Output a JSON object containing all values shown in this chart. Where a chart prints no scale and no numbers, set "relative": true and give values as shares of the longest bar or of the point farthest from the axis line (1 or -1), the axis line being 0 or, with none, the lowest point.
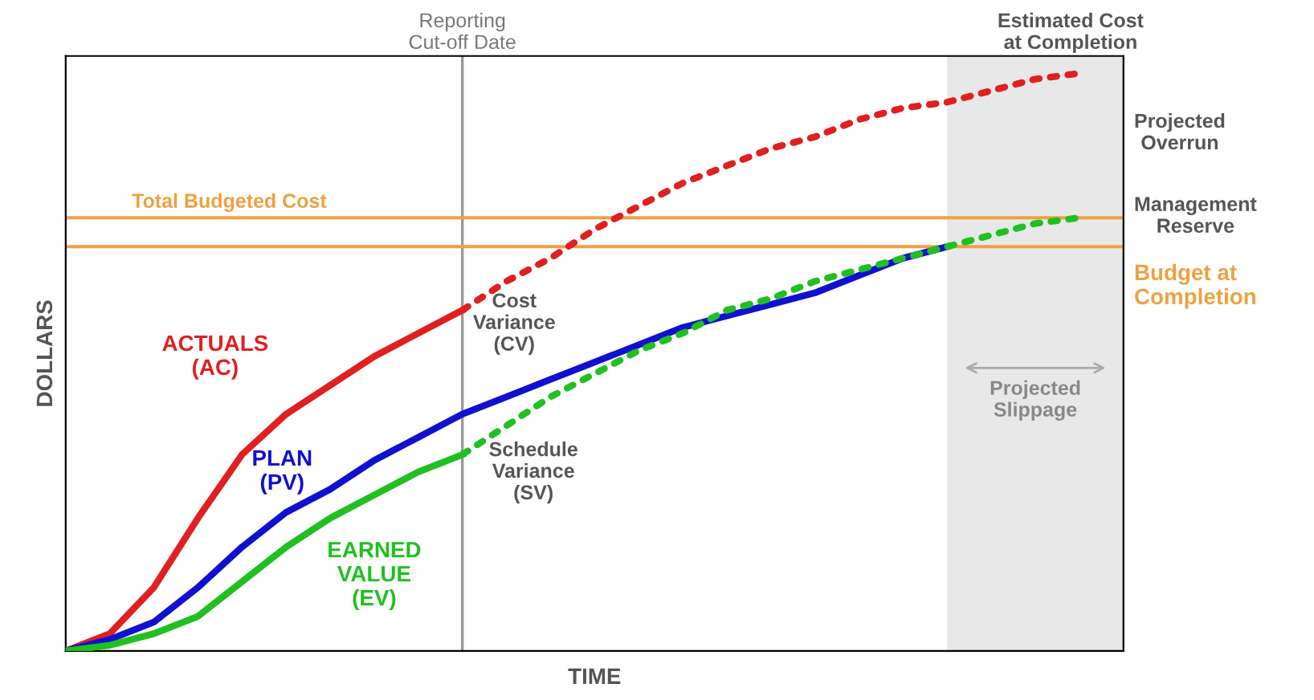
{
  "chart_data": {
    "type": "line",
    "relative": true,
    "xlabel": "TIME",
    "ylabel": "DOLLARS",
    "marker": "none",
    "categories": [
      null,
      null,
      null,
      null,
      null,
      null,
      null,
      null,
      null,
      null,
      null,
      null,
      null,
      null,
      null,
      null,
      null,
      null,
      null,
      null,
      null,
      null,
      null,
      null,
      null
    ],
    "series": [
      {
        "name": "ACTUALS\n(AC)",
        "color": "#e02020",
        "line_style": "solid",
        "values": [
          0,
          0.03,
          0.11,
          0.23,
          0.34,
          0.41,
          0.46,
          0.51,
          0.55,
          0.59,
          null,
          null,
          null,
          null,
          null,
          null,
          null,
          null,
          null,
          null,
          null,
          null,
          null,
          null,
          null
        ]
      },
      {
        "color": "#e02020",
        "line_style": "dotted",
        "values": [
          null,
          null,
          null,
          null,
          null,
          null,
          null,
          null,
          null,
          0.59,
          0.64,
          0.68,
          0.73,
          0.77,
          0.81,
          0.84,
          0.87,
          0.89,
          0.92,
          0.94,
          0.95,
          0.97,
          0.99,
          1.0,
          null
        ]
      },
      {
        "name": "PLAN\n(PV)",
        "color": "#1010d0",
        "line_style": "solid",
        "values": [
          0,
          0.02,
          0.05,
          0.11,
          0.18,
          0.24,
          0.28,
          0.33,
          0.37,
          0.41,
          0.44,
          0.47,
          0.5,
          0.53,
          0.56,
          0.58,
          0.6,
          0.62,
          0.65,
          0.68,
          0.7,
          null,
          null,
          null,
          null
        ]
      },
      {
        "name": "EARNED\nVALUE\n(EV)",
        "color": "#20c020",
        "line_style": "solid",
        "values": [
          0,
          0.01,
          0.03,
          0.06,
          0.12,
          0.18,
          0.23,
          0.27,
          0.31,
          0.34,
          null,
          null,
          null,
          null,
          null,
          null,
          null,
          null,
          null,
          null,
          null,
          null,
          null,
          null,
          null
        ]
      },
      {
        "color": "#20c020",
        "line_style": "dotted",
        "values": [
          null,
          null,
          null,
          null,
          null,
          null,
          null,
          null,
          null,
          0.34,
          0.39,
          0.44,
          0.48,
          0.52,
          0.55,
          0.59,
          0.61,
          0.64,
          0.66,
          0.68,
          0.7,
          0.72,
          0.74,
          0.75,
          null
        ]
      }
    ],
    "ref_lines": [
      {
        "axis": "y",
        "value": 0.75,
        "label": "Total Budgeted Cost",
        "color": "#f0a040"
      },
      {
        "axis": "y",
        "value": 0.7,
        "label": "Budget at\nCompletion",
        "color": "#f0a040"
      }
    ],
    "annotations": [
      "Reporting\nCut-off Date",
      "Projected\nSlippage",
      "Cost\nVariance\n(CV)",
      "Schedule\nVariance\n(SV)",
      "Estimated Cost\nat Completion",
      "Projected\nOverrun",
      "Management\nReserve"
    ]
  }
}
